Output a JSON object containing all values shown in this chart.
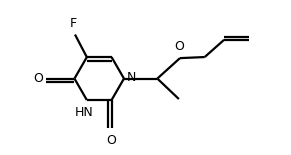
{
  "bg_color": "#ffffff",
  "bond_color": "#000000",
  "text_color": "#000000",
  "line_width": 1.6,
  "font_size": 9,
  "fig_width": 2.91,
  "fig_height": 1.55,
  "dpi": 100,
  "xlim": [
    0.0,
    1.0
  ],
  "ylim": [
    0.0,
    0.72
  ]
}
